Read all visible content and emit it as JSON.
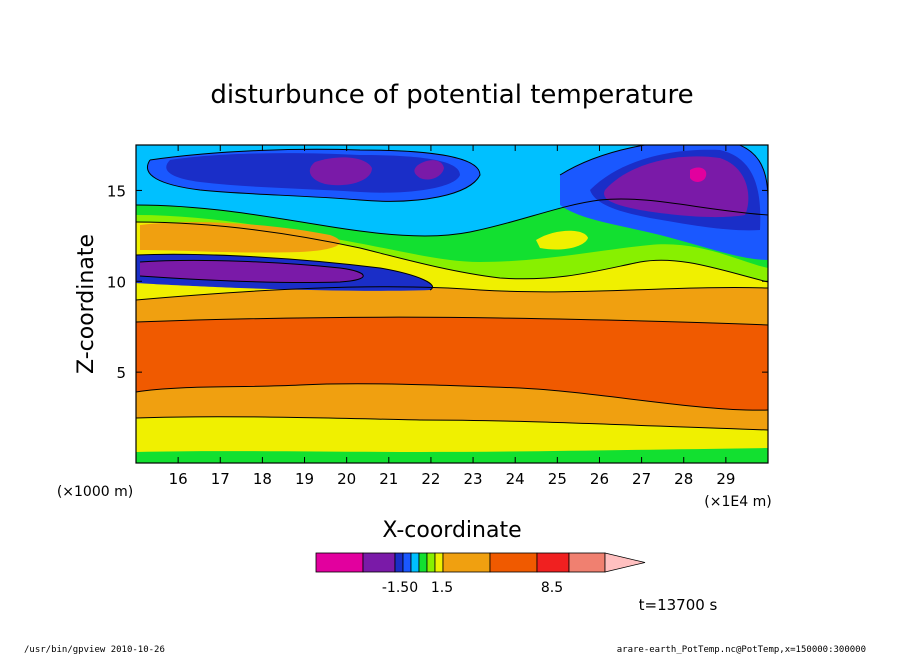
{
  "footer": {
    "left": "/usr/bin/gpview   2010-10-26",
    "right": "arare-earth_PotTemp.nc@PotTemp,x=150000:300000"
  },
  "chart_data": {
    "type": "contour",
    "title": "disturbunce of potential temperature",
    "xlabel": "X-coordinate",
    "ylabel": "Z-coordinate",
    "x_ticks": [
      "16",
      "17",
      "18",
      "19",
      "20",
      "21",
      "22",
      "23",
      "24",
      "25",
      "26",
      "27",
      "28",
      "29"
    ],
    "y_ticks": [
      "5",
      "10",
      "15"
    ],
    "x_unit": "(×1E4 m)",
    "y_unit": "(×1000 m)",
    "xlim": [
      150000,
      300000
    ],
    "ylim": [
      0,
      17.5
    ],
    "time_label": "t=13700 s",
    "colorbar": {
      "labels": [
        "-1.50",
        "1.5",
        "8.5"
      ],
      "colors": [
        "#e2009e",
        "#7a1aa8",
        "#1a2ec8",
        "#1a58ff",
        "#00c0ff",
        "#12e030",
        "#88f000",
        "#f0f000",
        "#f0a010",
        "#f05a00",
        "#f02020",
        "#f08070",
        "#ffc0c0"
      ]
    },
    "bands": [
      {
        "z_from": 0.0,
        "z_to": 0.8,
        "color": "#12e030",
        "level": "surface"
      },
      {
        "z_from": 0.8,
        "z_to": 2.0,
        "color": "#f0f000",
        "level": "low"
      },
      {
        "z_from": 2.0,
        "z_to": 3.0,
        "color": "#f0a010",
        "level": "lower"
      },
      {
        "z_from": 3.0,
        "z_to": 7.5,
        "color": "#f05a00",
        "level": "max"
      },
      {
        "z_from": 7.5,
        "z_to": 9.0,
        "color": "#f0a010",
        "level": "upper"
      },
      {
        "z_from": 9.0,
        "z_to": 17.5,
        "color": "#00c0ff",
        "level": "top"
      }
    ]
  }
}
